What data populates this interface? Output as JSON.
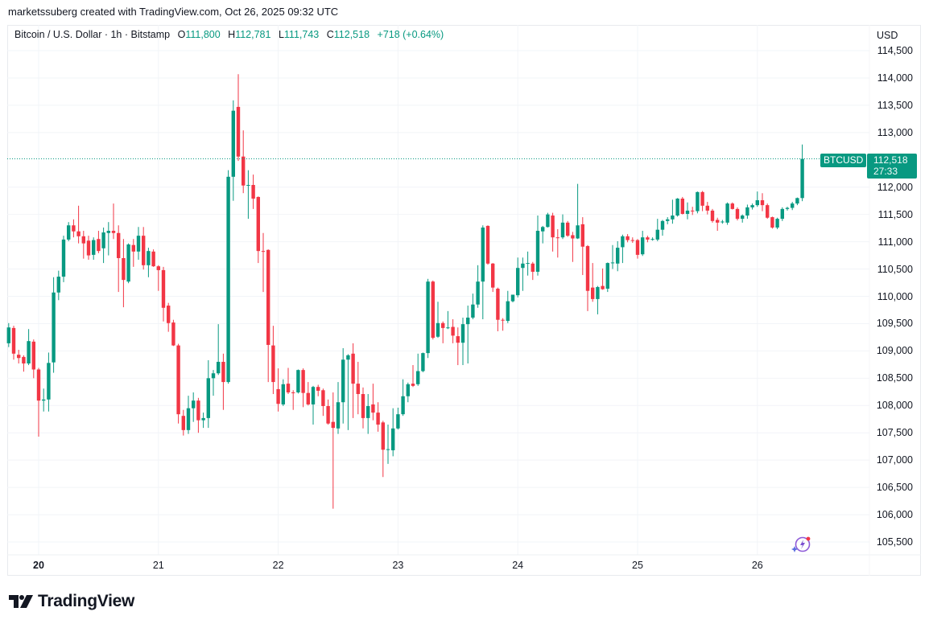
{
  "header": {
    "credit": "marketssuberg created with TradingView.com, Oct 26, 2025 09:32 UTC"
  },
  "legend": {
    "symbol": "Bitcoin / U.S. Dollar · 1h · Bitstamp",
    "o_label": "O",
    "o": "111,800",
    "h_label": "H",
    "h": "112,781",
    "l_label": "L",
    "l": "111,743",
    "c_label": "C",
    "c": "112,518",
    "change": "+718 (+0.64%)"
  },
  "price_axis": {
    "currency": "USD",
    "ticks": [
      "114,500",
      "114,000",
      "113,500",
      "113,000",
      "112,000",
      "111,500",
      "111,000",
      "110,500",
      "110,000",
      "109,500",
      "109,000",
      "108,500",
      "108,000",
      "107,500",
      "107,000",
      "106,500",
      "106,000",
      "105,500"
    ]
  },
  "last_price": {
    "symbol": "BTCUSD",
    "price": "112,518",
    "countdown": "27:33"
  },
  "footer": {
    "brand": "TradingView"
  },
  "colors": {
    "up": "#089981",
    "down": "#F23645",
    "grid": "#f2f4f8"
  },
  "icons": {
    "assistant": "sparkle-lightning-icon",
    "logo": "tradingview-logo-icon"
  },
  "chart_data": {
    "type": "candlestick",
    "title": "Bitcoin / U.S. Dollar · 1h · Bitstamp",
    "interval": "1h",
    "ylim": [
      105300,
      114600
    ],
    "grid": true,
    "x_ticks": [
      {
        "label": "20",
        "day": 20,
        "bold": true
      },
      {
        "label": "21",
        "day": 21
      },
      {
        "label": "22",
        "day": 22
      },
      {
        "label": "23",
        "day": 23
      },
      {
        "label": "24",
        "day": 24
      },
      {
        "label": "25",
        "day": 25
      },
      {
        "label": "26",
        "day": 26
      }
    ],
    "y_ticks": [
      114500,
      114000,
      113500,
      113000,
      112000,
      111500,
      111000,
      110500,
      110000,
      109500,
      109000,
      108500,
      108000,
      107500,
      107000,
      106500,
      106000,
      105500
    ],
    "last_price": 112518,
    "days": [
      {
        "date": "2025-10-19",
        "from_hour": 18,
        "ohlc": [
          [
            109140,
            109510,
            109070,
            109430
          ],
          [
            109420,
            109460,
            108840,
            108950
          ],
          [
            108930,
            109020,
            108770,
            108870
          ],
          [
            108890,
            108920,
            108620,
            108770
          ],
          [
            108770,
            109400,
            108740,
            109180
          ],
          [
            109170,
            109210,
            108500,
            108660
          ]
        ]
      },
      {
        "date": "2025-10-20",
        "from_hour": 0,
        "ohlc": [
          [
            108660,
            108690,
            107430,
            108090
          ],
          [
            108090,
            108310,
            107890,
            108110
          ],
          [
            108110,
            108970,
            107890,
            108780
          ],
          [
            108790,
            110350,
            108600,
            110070
          ],
          [
            110070,
            110470,
            109930,
            110360
          ],
          [
            110360,
            111110,
            110260,
            111040
          ],
          [
            111040,
            111360,
            111010,
            111300
          ],
          [
            111300,
            111410,
            111080,
            111190
          ],
          [
            111190,
            111660,
            110970,
            111100
          ],
          [
            111100,
            111200,
            110690,
            110970
          ],
          [
            111020,
            111110,
            110670,
            110750
          ],
          [
            110760,
            111080,
            110670,
            111030
          ],
          [
            111050,
            111200,
            110790,
            110830
          ],
          [
            110880,
            111260,
            110610,
            111170
          ],
          [
            111160,
            111360,
            110750,
            111200
          ],
          [
            111200,
            111700,
            111050,
            111160
          ],
          [
            111160,
            111300,
            110080,
            110700
          ],
          [
            110700,
            111050,
            109800,
            110300
          ],
          [
            110270,
            110970,
            110240,
            110950
          ],
          [
            110940,
            111050,
            110540,
            110820
          ],
          [
            110820,
            111270,
            110670,
            111110
          ],
          [
            111110,
            111270,
            110490,
            110570
          ],
          [
            110570,
            110890,
            110350,
            110830
          ],
          [
            110820,
            110860,
            110540,
            110550
          ]
        ]
      },
      {
        "date": "2025-10-21",
        "from_hour": 0,
        "ohlc": [
          [
            110550,
            110570,
            110100,
            110480
          ],
          [
            110480,
            110540,
            109540,
            109790
          ],
          [
            109830,
            109880,
            109350,
            109510
          ],
          [
            109520,
            109570,
            109090,
            109100
          ],
          [
            109100,
            109130,
            107670,
            107840
          ],
          [
            107810,
            107920,
            107450,
            107550
          ],
          [
            107550,
            108180,
            107480,
            107950
          ],
          [
            107950,
            108240,
            107700,
            108090
          ],
          [
            108090,
            108140,
            107500,
            107730
          ],
          [
            107730,
            107870,
            107590,
            107770
          ],
          [
            107770,
            108830,
            107590,
            108500
          ],
          [
            108500,
            108650,
            108180,
            108590
          ],
          [
            108590,
            109490,
            108560,
            108800
          ],
          [
            108800,
            108950,
            107920,
            108430
          ],
          [
            108430,
            112310,
            108400,
            112190
          ],
          [
            112190,
            113590,
            111750,
            113400
          ],
          [
            113470,
            114070,
            112480,
            112560
          ],
          [
            112560,
            113040,
            111890,
            112030
          ],
          [
            112030,
            112310,
            111420,
            112040
          ],
          [
            112040,
            112230,
            111600,
            111790
          ],
          [
            111820,
            111830,
            110610,
            110830
          ],
          [
            110830,
            111160,
            110080,
            110820
          ],
          [
            110850,
            110860,
            108430,
            109110
          ],
          [
            109100,
            109460,
            108210,
            108430
          ]
        ]
      },
      {
        "date": "2025-10-22",
        "from_hour": 0,
        "ohlc": [
          [
            108300,
            108680,
            107890,
            108030
          ],
          [
            108020,
            108480,
            107990,
            108390
          ],
          [
            108400,
            108690,
            108210,
            108240
          ],
          [
            108240,
            108280,
            107920,
            108230
          ],
          [
            108240,
            108660,
            108220,
            108650
          ],
          [
            108650,
            108680,
            107970,
            108230
          ],
          [
            108230,
            108430,
            108000,
            108020
          ],
          [
            108020,
            108360,
            107650,
            108340
          ],
          [
            108340,
            108380,
            108170,
            108270
          ],
          [
            108280,
            108310,
            107810,
            107990
          ],
          [
            107990,
            108110,
            107650,
            107670
          ],
          [
            107700,
            108240,
            106110,
            107590
          ],
          [
            107580,
            108430,
            107480,
            108060
          ],
          [
            108060,
            109050,
            107670,
            108840
          ],
          [
            108840,
            108940,
            107550,
            108920
          ],
          [
            108950,
            109140,
            107770,
            108400
          ],
          [
            108400,
            108800,
            107840,
            108210
          ],
          [
            108210,
            108330,
            107580,
            107770
          ],
          [
            107770,
            108210,
            107480,
            107990
          ],
          [
            108020,
            108400,
            107730,
            107870
          ],
          [
            107870,
            108060,
            107520,
            107650
          ],
          [
            107690,
            107720,
            106690,
            107190
          ],
          [
            107190,
            107650,
            106930,
            107200
          ],
          [
            107180,
            107950,
            107070,
            107580
          ]
        ]
      },
      {
        "date": "2025-10-23",
        "from_hour": 0,
        "ohlc": [
          [
            107580,
            107960,
            107560,
            107840
          ],
          [
            107840,
            108480,
            107810,
            108170
          ],
          [
            108170,
            108420,
            108060,
            108390
          ],
          [
            108400,
            108740,
            108340,
            108360
          ],
          [
            108390,
            108950,
            108360,
            108630
          ],
          [
            108630,
            108970,
            108610,
            108960
          ],
          [
            108960,
            110320,
            108870,
            110270
          ],
          [
            110270,
            110290,
            109210,
            109240
          ],
          [
            109260,
            109900,
            109240,
            109510
          ],
          [
            109510,
            109540,
            109140,
            109420
          ],
          [
            109420,
            109730,
            109400,
            109430
          ],
          [
            109440,
            109580,
            109140,
            109280
          ],
          [
            109270,
            109430,
            108740,
            109150
          ],
          [
            109150,
            109610,
            108740,
            109490
          ],
          [
            109490,
            109830,
            108770,
            109610
          ],
          [
            109610,
            110050,
            109580,
            109850
          ],
          [
            109850,
            110570,
            109790,
            110270
          ],
          [
            110270,
            111300,
            109580,
            111260
          ],
          [
            111290,
            111300,
            110580,
            110600
          ],
          [
            110600,
            110610,
            110080,
            110160
          ],
          [
            110140,
            110160,
            109360,
            109570
          ],
          [
            109570,
            109600,
            109370,
            109560
          ],
          [
            109550,
            110100,
            109510,
            109910
          ],
          [
            109910,
            110030,
            109890,
            110030
          ]
        ]
      },
      {
        "date": "2025-10-24",
        "from_hour": 0,
        "ohlc": [
          [
            110020,
            110710,
            109980,
            110520
          ],
          [
            110520,
            110710,
            110100,
            110600
          ],
          [
            110600,
            110820,
            110380,
            110610
          ],
          [
            110600,
            110630,
            110300,
            110450
          ],
          [
            110450,
            111480,
            110380,
            111200
          ],
          [
            111190,
            111290,
            110970,
            111270
          ],
          [
            111270,
            111530,
            111260,
            111500
          ],
          [
            111480,
            111530,
            110820,
            111080
          ],
          [
            111080,
            111230,
            110710,
            111070
          ],
          [
            111080,
            111500,
            111050,
            111350
          ],
          [
            111350,
            111380,
            111090,
            111110
          ],
          [
            111120,
            111180,
            110630,
            111060
          ],
          [
            111060,
            112060,
            111050,
            111300
          ],
          [
            111320,
            111450,
            110390,
            110910
          ],
          [
            110920,
            110940,
            109730,
            110100
          ],
          [
            110160,
            110610,
            109900,
            109950
          ],
          [
            109950,
            110190,
            109670,
            110170
          ],
          [
            110190,
            110510,
            110120,
            110130
          ],
          [
            110140,
            110620,
            110080,
            110610
          ],
          [
            110610,
            110940,
            110500,
            110620
          ],
          [
            110600,
            111010,
            110460,
            110890
          ],
          [
            110900,
            111130,
            110610,
            111100
          ],
          [
            111100,
            111140,
            110990,
            111030
          ],
          [
            111030,
            111080,
            110980,
            111020
          ]
        ]
      },
      {
        "date": "2025-10-25",
        "from_hour": 0,
        "ohlc": [
          [
            111030,
            111050,
            110690,
            110760
          ],
          [
            110770,
            111200,
            110740,
            111080
          ],
          [
            111080,
            111110,
            110990,
            111040
          ],
          [
            111040,
            111080,
            111020,
            111050
          ],
          [
            111040,
            111420,
            111010,
            111220
          ],
          [
            111220,
            111400,
            111110,
            111380
          ],
          [
            111380,
            111450,
            111320,
            111410
          ],
          [
            111410,
            111770,
            111330,
            111480
          ],
          [
            111480,
            111800,
            111460,
            111790
          ],
          [
            111790,
            111820,
            111500,
            111510
          ],
          [
            111510,
            111720,
            111410,
            111570
          ],
          [
            111570,
            111640,
            111490,
            111560
          ],
          [
            111560,
            111920,
            111520,
            111910
          ],
          [
            111910,
            111930,
            111560,
            111660
          ],
          [
            111660,
            111730,
            111500,
            111570
          ],
          [
            111570,
            111600,
            111350,
            111380
          ],
          [
            111400,
            111440,
            111200,
            111350
          ],
          [
            111360,
            111400,
            111330,
            111370
          ],
          [
            111350,
            111720,
            111310,
            111700
          ],
          [
            111700,
            111720,
            111590,
            111600
          ],
          [
            111600,
            111630,
            111390,
            111420
          ],
          [
            111420,
            111500,
            111350,
            111480
          ],
          [
            111480,
            111680,
            111420,
            111630
          ],
          [
            111630,
            111700,
            111590,
            111670
          ]
        ]
      },
      {
        "date": "2025-10-26",
        "from_hour": 0,
        "ohlc": [
          [
            111670,
            111920,
            111640,
            111760
          ],
          [
            111760,
            111890,
            111560,
            111670
          ],
          [
            111670,
            111700,
            111420,
            111440
          ],
          [
            111450,
            111460,
            111240,
            111260
          ],
          [
            111260,
            111440,
            111230,
            111420
          ],
          [
            111420,
            111630,
            111380,
            111600
          ],
          [
            111600,
            111640,
            111570,
            111620
          ],
          [
            111620,
            111730,
            111580,
            111700
          ],
          [
            111700,
            111810,
            111670,
            111800
          ],
          [
            111800,
            112781,
            111743,
            112518
          ]
        ]
      }
    ]
  }
}
